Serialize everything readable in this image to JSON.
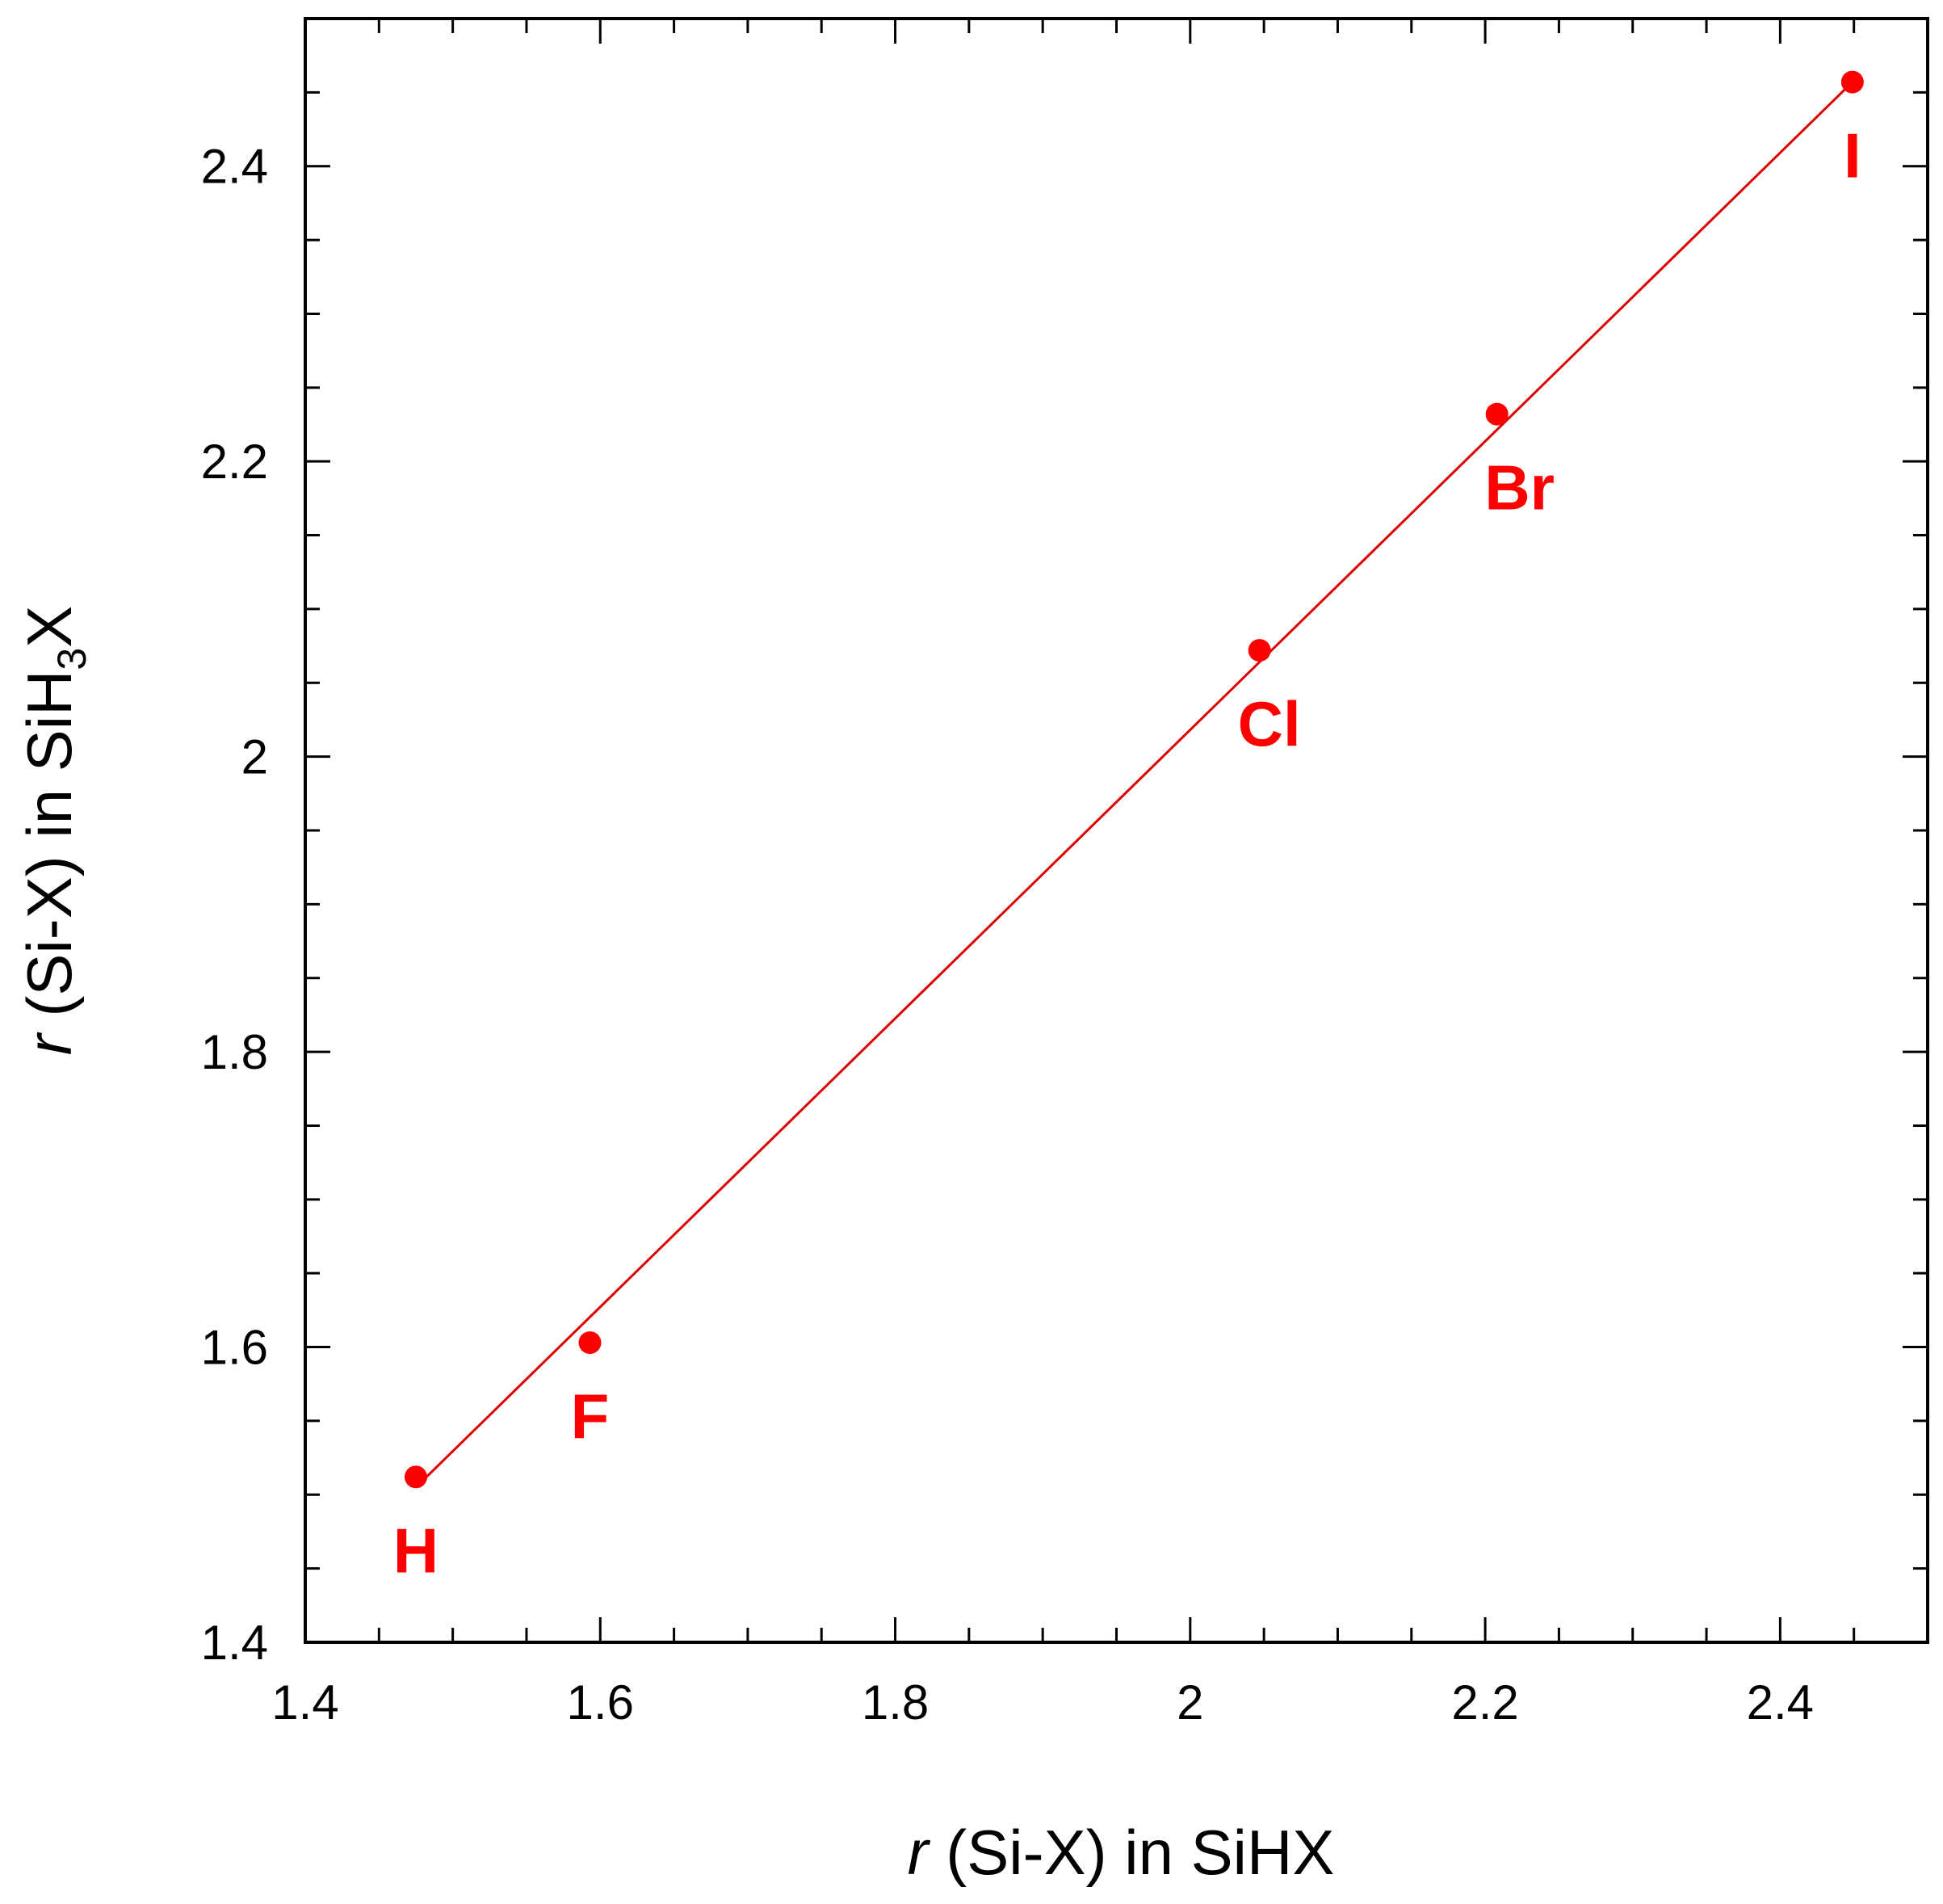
{
  "chart_data": {
    "type": "scatter",
    "xlabel_parts": [
      "r",
      " (Si-X) in SiHX"
    ],
    "ylabel_parts": [
      "r",
      " (Si-X) in SiH",
      "3",
      "X"
    ],
    "series": [
      {
        "color": "#ff0000",
        "x": [
          1.475,
          1.593,
          2.047,
          2.208,
          2.449
        ],
        "values": [
          1.512,
          1.603,
          2.072,
          2.232,
          2.457
        ],
        "labels": [
          "H",
          "F",
          "Cl",
          "Br",
          "I"
        ]
      }
    ],
    "fit_line": {
      "color": "#dd0000",
      "x": [
        1.475,
        2.449
      ],
      "y": [
        1.505,
        2.457
      ]
    },
    "xlim": [
      1.4,
      2.5
    ],
    "ylim": [
      1.4,
      2.5
    ],
    "xticks": [
      1.4,
      1.6,
      1.8,
      2,
      2.2,
      2.4
    ],
    "yticks": [
      1.4,
      1.6,
      1.8,
      2,
      2.2,
      2.4
    ],
    "xticks_minor": [
      1.45,
      1.5,
      1.55,
      1.65,
      1.7,
      1.75,
      1.85,
      1.9,
      1.95,
      2.05,
      2.1,
      2.15,
      2.25,
      2.3,
      2.35,
      2.45,
      2.5
    ],
    "yticks_minor": [
      1.45,
      1.5,
      1.55,
      1.65,
      1.7,
      1.75,
      1.85,
      1.9,
      1.95,
      2.05,
      2.1,
      2.15,
      2.25,
      2.3,
      2.35,
      2.45,
      2.5
    ]
  }
}
